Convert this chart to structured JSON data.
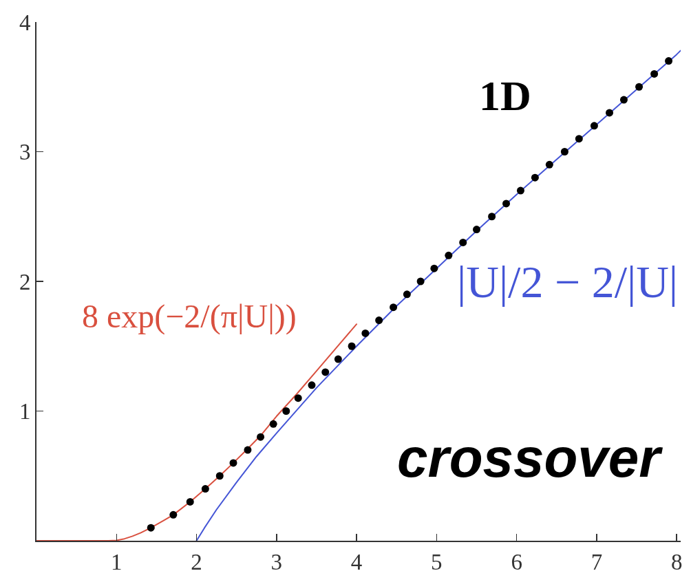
{
  "chart_data": {
    "type": "line",
    "annotations": [
      "1D",
      "crossover"
    ],
    "series": [
      {
        "name": "8 exp(−2/(π|U|))",
        "type": "line",
        "color": "#d9503f",
        "x": [
          0,
          0.5,
          0.9,
          1.0,
          1.1,
          1.2,
          1.3,
          1.43,
          1.6,
          1.71,
          1.92,
          2.11,
          2.29,
          2.46,
          2.64,
          2.8,
          3.0,
          3.25,
          3.5,
          3.75,
          4.0
        ],
        "values": [
          0,
          0,
          0,
          0.003,
          0.015,
          0.035,
          0.06,
          0.1,
          0.16,
          0.2,
          0.3,
          0.4,
          0.5,
          0.6,
          0.71,
          0.81,
          0.96,
          1.13,
          1.31,
          1.49,
          1.67
        ]
      },
      {
        "name": "|U|/2 − 2/|U|",
        "type": "line",
        "color": "#4455d6",
        "x": [
          2.0,
          2.1,
          2.25,
          2.5,
          2.75,
          3,
          3.5,
          4,
          4.5,
          5,
          5.5,
          6,
          6.5,
          7,
          7.5,
          8,
          8.05
        ],
        "values": [
          0,
          0.1,
          0.24,
          0.45,
          0.65,
          0.83,
          1.18,
          1.5,
          1.81,
          2.1,
          2.39,
          2.67,
          2.94,
          3.21,
          3.48,
          3.75,
          3.78
        ]
      },
      {
        "type": "scatter",
        "marker": "circle",
        "color": "#000000",
        "x": [
          1.43,
          1.71,
          1.92,
          2.11,
          2.29,
          2.46,
          2.64,
          2.8,
          2.96,
          3.12,
          3.27,
          3.44,
          3.61,
          3.77,
          3.94,
          4.11,
          4.28,
          4.46,
          4.63,
          4.8,
          4.97,
          5.15,
          5.33,
          5.5,
          5.69,
          5.87,
          6.05,
          6.23,
          6.41,
          6.6,
          6.78,
          6.97,
          7.16,
          7.34,
          7.53,
          7.72,
          7.9
        ],
        "values": [
          0.1,
          0.2,
          0.3,
          0.4,
          0.5,
          0.6,
          0.7,
          0.8,
          0.9,
          1.0,
          1.1,
          1.2,
          1.3,
          1.4,
          1.5,
          1.6,
          1.7,
          1.8,
          1.9,
          2.0,
          2.1,
          2.2,
          2.3,
          2.4,
          2.5,
          2.6,
          2.7,
          2.8,
          2.9,
          3.0,
          3.1,
          3.2,
          3.3,
          3.4,
          3.5,
          3.6,
          3.7
        ]
      }
    ],
    "xlim": [
      0,
      8.05
    ],
    "xticks": [
      1,
      2,
      3,
      4,
      5,
      6,
      7,
      8
    ],
    "ylim": [
      0,
      4
    ],
    "yticks": [
      1,
      2,
      3,
      4
    ],
    "grid": false,
    "legend": false
  }
}
